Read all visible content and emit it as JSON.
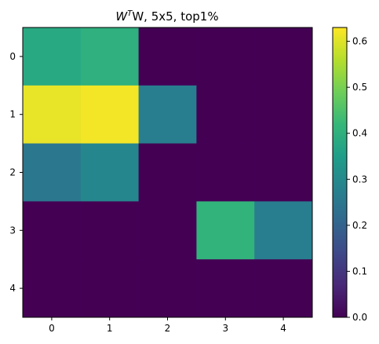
{
  "chart_data": {
    "type": "heatmap",
    "title": "WTW, 5x5, top1%",
    "title_parts": {
      "base": "W",
      "superscript": "T",
      "tail": "W, 5x5, top1%"
    },
    "xlabel": "",
    "ylabel": "",
    "x_ticks": [
      "0",
      "1",
      "2",
      "3",
      "4"
    ],
    "y_ticks": [
      "0",
      "1",
      "2",
      "3",
      "4"
    ],
    "matrix": [
      [
        0.38,
        0.4,
        0.0,
        0.0,
        0.0
      ],
      [
        0.61,
        0.62,
        0.27,
        0.0,
        0.0
      ],
      [
        0.25,
        0.29,
        0.0,
        0.0,
        0.0
      ],
      [
        0.0,
        0.0,
        0.0,
        0.41,
        0.27
      ],
      [
        0.0,
        0.0,
        0.0,
        0.0,
        0.0
      ]
    ],
    "colormap": "viridis",
    "vmin": 0.0,
    "vmax": 0.63,
    "colorbar_ticks": [
      0.0,
      0.1,
      0.2,
      0.3,
      0.4,
      0.5,
      0.6
    ],
    "colorbar_tick_labels": [
      "0.0",
      "0.1",
      "0.2",
      "0.3",
      "0.4",
      "0.5",
      "0.6"
    ],
    "grid": false
  }
}
